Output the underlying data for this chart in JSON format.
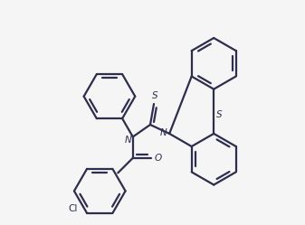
{
  "bg_color": "#f5f5f5",
  "line_color": "#2d2d4e",
  "label_color": "#2d2d4e",
  "lw": 1.6,
  "figsize": [
    3.37,
    2.49
  ],
  "dpi": 100,
  "xlim": [
    0,
    1
  ],
  "ylim": [
    0,
    1
  ]
}
